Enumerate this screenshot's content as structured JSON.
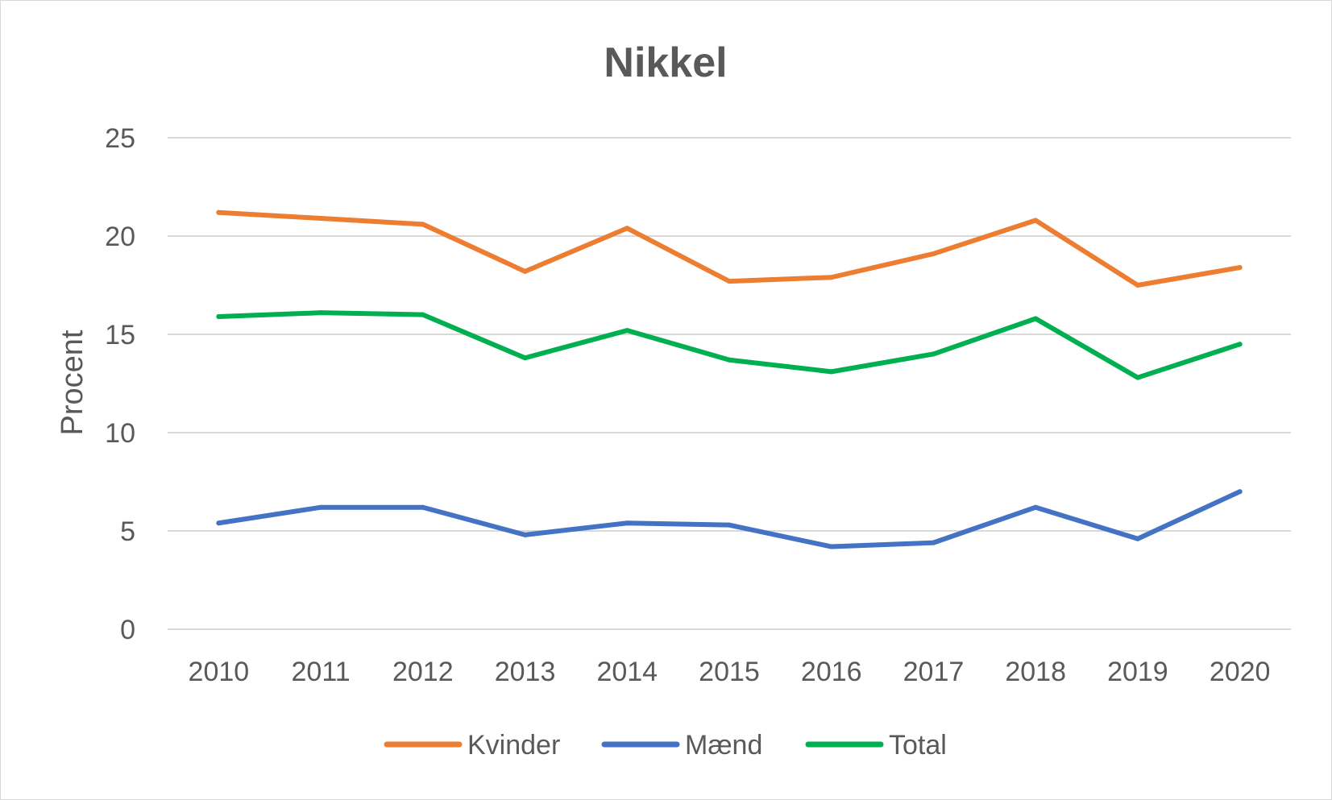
{
  "chart_data": {
    "type": "line",
    "title": "Nikkel",
    "xlabel": "",
    "ylabel": "Procent",
    "ylim": [
      0,
      25
    ],
    "yticks": [
      "0",
      "5",
      "10",
      "15",
      "20",
      "25"
    ],
    "categories": [
      "2010",
      "2011",
      "2012",
      "2013",
      "2014",
      "2015",
      "2016",
      "2017",
      "2018",
      "2019",
      "2020"
    ],
    "grid": true,
    "legend_position": "bottom",
    "series": [
      {
        "name": "Kvinder",
        "color": "#ed7d31",
        "values": [
          21.2,
          20.9,
          20.6,
          18.2,
          20.4,
          17.7,
          17.9,
          19.1,
          20.8,
          17.5,
          18.4
        ]
      },
      {
        "name": "Mænd",
        "color": "#4472c4",
        "values": [
          5.4,
          6.2,
          6.2,
          4.8,
          5.4,
          5.3,
          4.2,
          4.4,
          6.2,
          4.6,
          7.0
        ]
      },
      {
        "name": "Total",
        "color": "#00b050",
        "values": [
          15.9,
          16.1,
          16.0,
          13.8,
          15.2,
          13.7,
          13.1,
          14.0,
          15.8,
          12.8,
          14.5
        ]
      }
    ]
  }
}
